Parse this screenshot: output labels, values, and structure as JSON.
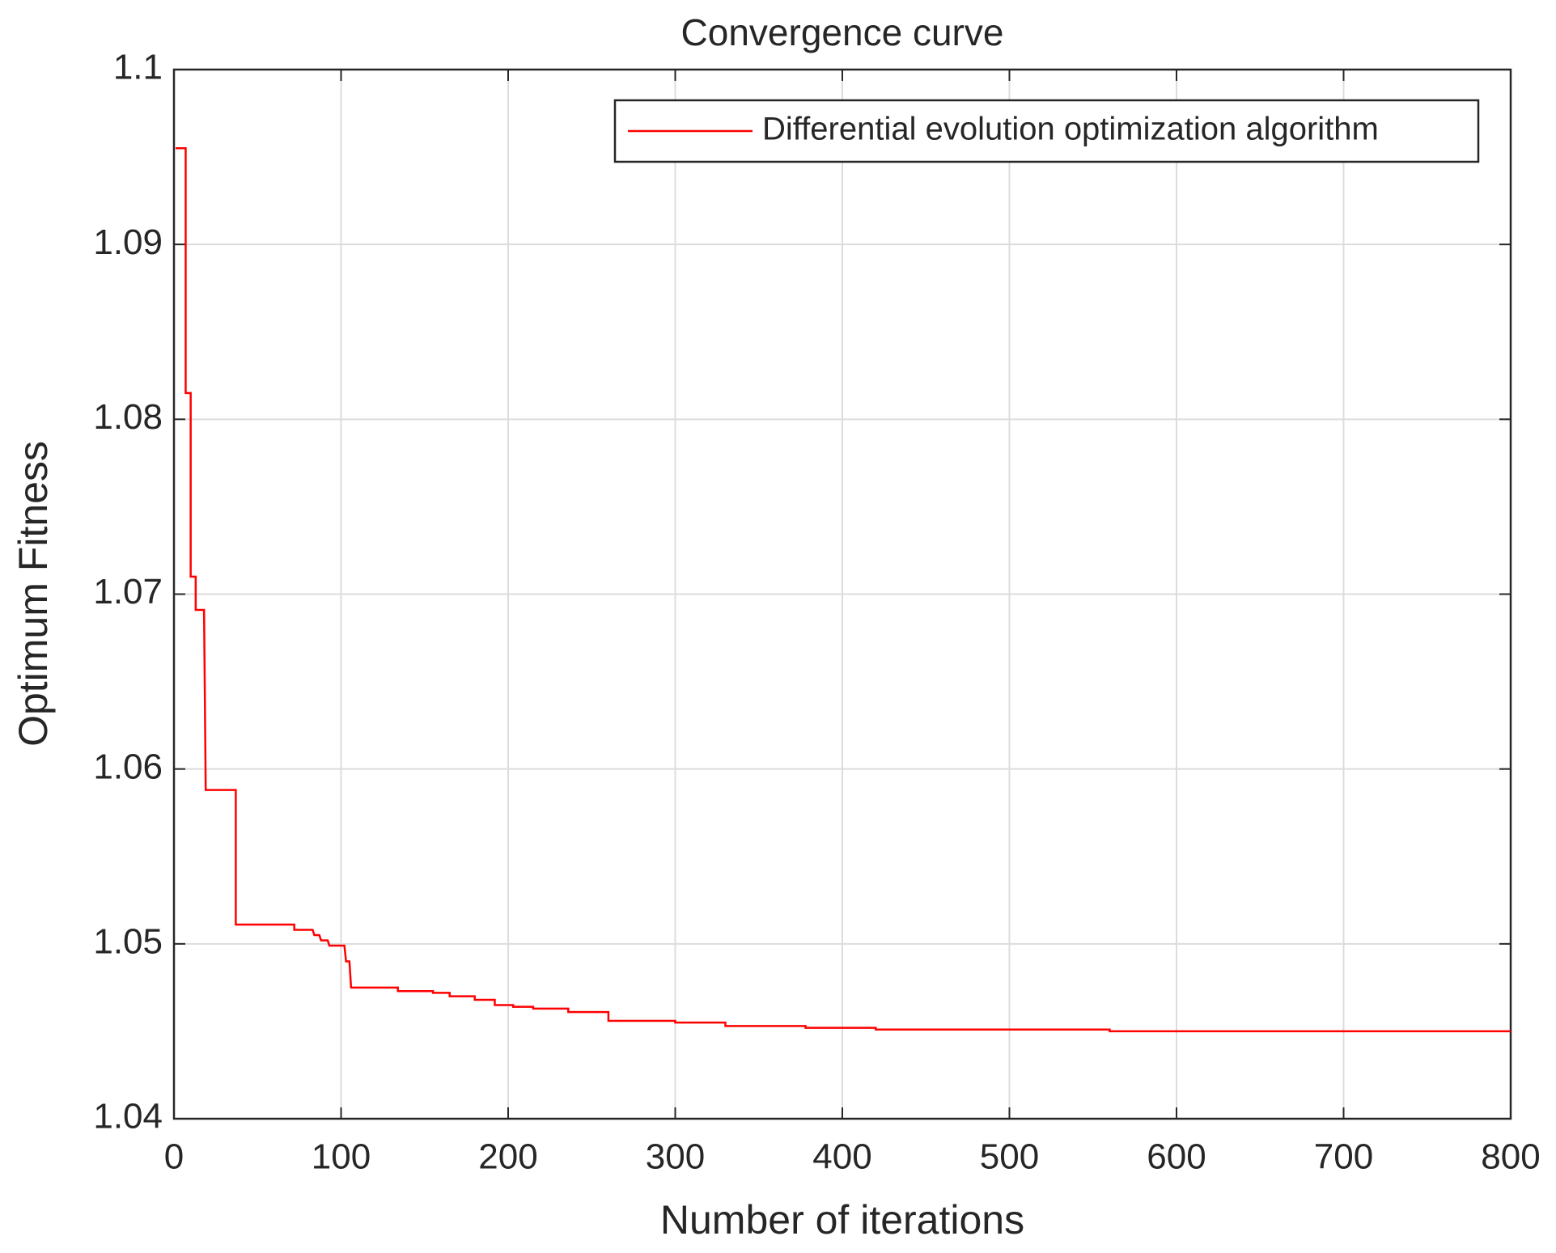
{
  "chart_data": {
    "type": "line",
    "title": "Convergence curve",
    "x_label": "Number of iterations",
    "y_label": "Optimum Fitness",
    "x": [
      1,
      7,
      7,
      10,
      10,
      13,
      13,
      18,
      19,
      37,
      37,
      72,
      72,
      83,
      84,
      87,
      88,
      92,
      93,
      102,
      103,
      105,
      106,
      134,
      134,
      155,
      155,
      165,
      165,
      180,
      180,
      192,
      192,
      203,
      203,
      215,
      215,
      236,
      236,
      260,
      260,
      300,
      300,
      330,
      330,
      378,
      378,
      420,
      420,
      560,
      560,
      800
    ],
    "series": [
      {
        "name": "Differential evolution optimization algorithm",
        "color": "#ff0000",
        "values": [
          1.0955,
          1.0955,
          1.0815,
          1.0815,
          1.071,
          1.071,
          1.0691,
          1.0691,
          1.0588,
          1.0588,
          1.0511,
          1.0511,
          1.0508,
          1.0508,
          1.0505,
          1.0505,
          1.0502,
          1.0502,
          1.0499,
          1.0499,
          1.049,
          1.049,
          1.0475,
          1.0475,
          1.0473,
          1.0473,
          1.0472,
          1.0472,
          1.047,
          1.047,
          1.0468,
          1.0468,
          1.0465,
          1.0465,
          1.0464,
          1.0464,
          1.0463,
          1.0463,
          1.0461,
          1.0461,
          1.0456,
          1.0456,
          1.0455,
          1.0455,
          1.0453,
          1.0453,
          1.0452,
          1.0452,
          1.0451,
          1.0451,
          1.045,
          1.045
        ]
      }
    ],
    "xlim": [
      0,
      800
    ],
    "xticks": [
      0,
      100,
      200,
      300,
      400,
      500,
      600,
      700,
      800
    ],
    "ylim": [
      1.04,
      1.1
    ],
    "yticks": [
      1.04,
      1.05,
      1.06,
      1.07,
      1.08,
      1.09,
      1.1
    ],
    "grid": true,
    "legend": "northeast"
  }
}
